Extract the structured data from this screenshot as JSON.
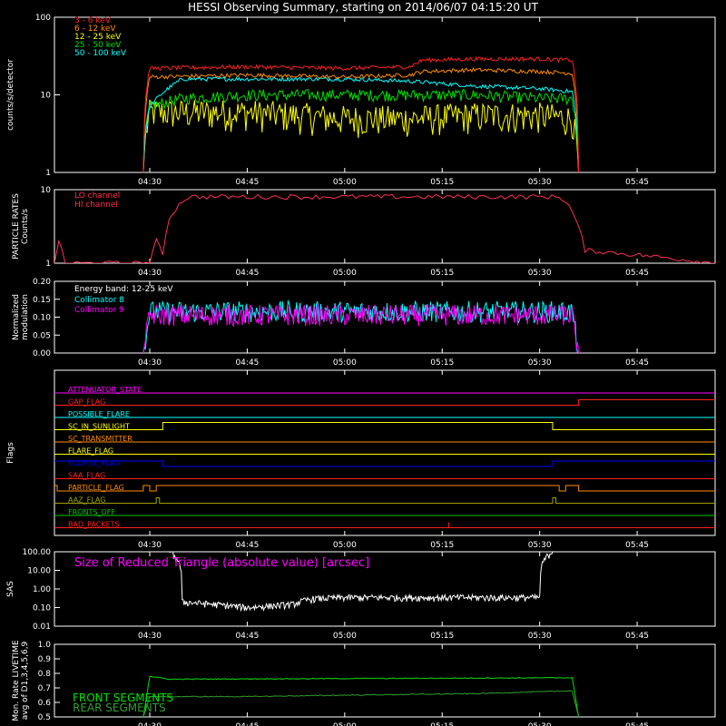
{
  "title": "HESSI Observing Summary, starting on 2014/06/07 04:15:20 UT",
  "time_ticks": [
    "04:30",
    "04:45",
    "05:00",
    "05:15",
    "05:30",
    "05:45"
  ],
  "colors": {
    "red": "#ff2020",
    "orange": "#ff8c00",
    "yellow": "#ffff00",
    "green": "#00e000",
    "cyan": "#00ffff",
    "magenta": "#ff00ff",
    "crimson": "#ff3050",
    "white": "#ffffff",
    "blue": "#0000ff",
    "olive": "#a0a000",
    "lime": "#00c800",
    "darkgreen": "#2f9f2f"
  },
  "chart_data": [
    {
      "type": "line",
      "id": "count-rates",
      "ylabel": "counts/s/detector",
      "y_scale": "log",
      "ylim": [
        1,
        100
      ],
      "y_ticks": [
        "1",
        "10",
        "100"
      ],
      "x_range": [
        "04:15:20",
        "05:57"
      ],
      "series": [
        {
          "name": "3 - 6 keV",
          "color": "red",
          "x": [
            "04:29",
            "04:30",
            "04:45",
            "05:00",
            "05:10",
            "05:12",
            "05:20",
            "05:30",
            "05:35",
            "05:36"
          ],
          "values": [
            1,
            22,
            23,
            22,
            23,
            28,
            29,
            29,
            28,
            1
          ]
        },
        {
          "name": "6 - 12 keV",
          "color": "orange",
          "x": [
            "04:29",
            "04:30",
            "04:45",
            "05:00",
            "05:10",
            "05:12",
            "05:20",
            "05:30",
            "05:35",
            "05:36"
          ],
          "values": [
            1,
            17,
            18,
            17,
            18,
            20,
            21,
            20,
            19,
            1
          ]
        },
        {
          "name": "12 - 25 keV",
          "color": "yellow",
          "x": [
            "04:29",
            "04:30",
            "04:45",
            "05:00",
            "05:10",
            "05:20",
            "05:30",
            "05:35",
            "05:36"
          ],
          "values": [
            1,
            6,
            6,
            5,
            5,
            5.5,
            5.5,
            5,
            1
          ]
        },
        {
          "name": "25 - 50 keV",
          "color": "green",
          "x": [
            "04:29",
            "04:30",
            "04:35",
            "04:45",
            "05:00",
            "05:10",
            "05:20",
            "05:30",
            "05:35",
            "05:36"
          ],
          "values": [
            1,
            7,
            9,
            10,
            10,
            10,
            10,
            9,
            9,
            1
          ]
        },
        {
          "name": "50 - 100 keV",
          "color": "cyan",
          "x": [
            "04:29",
            "04:30",
            "04:35",
            "04:45",
            "05:00",
            "05:10",
            "05:20",
            "05:30",
            "05:35",
            "05:36"
          ],
          "values": [
            1,
            7,
            16,
            16,
            16,
            15,
            13,
            12,
            11,
            1
          ]
        }
      ]
    },
    {
      "type": "line",
      "id": "particle-rates",
      "ylabel": "PARTICLE RATES",
      "ylabel2": "Counts/s",
      "y_scale": "log",
      "ylim": [
        1,
        10
      ],
      "y_ticks": [
        "1",
        "10"
      ],
      "series": [
        {
          "name": "LO channel",
          "color": "crimson",
          "x": [],
          "values": []
        },
        {
          "name": "HI channel",
          "color": "crimson",
          "x": [
            "04:15:20",
            "04:16",
            "04:17",
            "04:30",
            "04:31",
            "04:32",
            "04:33",
            "04:35",
            "04:36",
            "05:33",
            "05:34",
            "05:35",
            "05:36",
            "05:37",
            "05:57"
          ],
          "values": [
            1,
            2,
            1,
            1,
            2,
            1.3,
            4,
            7,
            8,
            8,
            7,
            5,
            3,
            1.5,
            1
          ]
        }
      ]
    },
    {
      "type": "line",
      "id": "modulation",
      "ylabel": "Normalized",
      "ylabel2": "modulation",
      "ylim": [
        0.0,
        0.2
      ],
      "y_ticks": [
        "0.00",
        "0.05",
        "0.10",
        "0.15",
        "0.20"
      ],
      "annotation": "Energy band: 12-25 keV",
      "series": [
        {
          "name": "Collimator 8",
          "color": "cyan",
          "x": [
            "04:29",
            "04:30",
            "05:35",
            "05:36"
          ],
          "values": [
            0.0,
            0.115,
            0.115,
            0.0
          ]
        },
        {
          "name": "Collimator 9",
          "color": "magenta",
          "x": [
            "04:29",
            "04:30",
            "05:35",
            "05:36"
          ],
          "values": [
            0.0,
            0.105,
            0.105,
            0.0
          ]
        }
      ]
    },
    {
      "type": "line",
      "id": "flags",
      "ylabel": "Flags",
      "flags": [
        {
          "name": "ATTENUATOR_STATE",
          "color": "magenta"
        },
        {
          "name": "GAP_FLAG",
          "color": "red"
        },
        {
          "name": "POSSIBLE_FLARE",
          "color": "cyan"
        },
        {
          "name": "SC_IN_SUNLIGHT",
          "color": "yellow"
        },
        {
          "name": "SC_TRANSMITTER",
          "color": "orange"
        },
        {
          "name": "FLARE_FLAG",
          "color": "yellow"
        },
        {
          "name": "ECLIPSE_FLAG",
          "color": "blue"
        },
        {
          "name": "SAA_FLAG",
          "color": "red"
        },
        {
          "name": "PARTICLE_FLAG",
          "color": "orange"
        },
        {
          "name": "AAZ_FLAG",
          "color": "olive"
        },
        {
          "name": "FRONTS_OFF",
          "color": "lime"
        },
        {
          "name": "BAD_PACKETS",
          "color": "red"
        }
      ]
    },
    {
      "type": "line",
      "id": "sas",
      "ylabel": "SAS",
      "y_scale": "log",
      "ylim": [
        0.01,
        100
      ],
      "y_ticks": [
        "0.01",
        "0.10",
        "1.00",
        "10.00",
        "100.00"
      ],
      "annotation": "Size of Reduced Triangle (absolute value) [arcsec]",
      "series": [
        {
          "name": "",
          "color": "white",
          "x": [
            "04:33",
            "04:35",
            "04:45",
            "04:52",
            "04:55",
            "05:00",
            "05:15",
            "05:30",
            "05:32"
          ],
          "values": [
            100,
            0.2,
            0.1,
            0.15,
            0.3,
            0.35,
            0.35,
            0.35,
            100
          ]
        }
      ]
    },
    {
      "type": "line",
      "id": "livetime",
      "ylabel": "Mon. Rate LIVETIME",
      "ylabel2": "avg of D1,3,4,5,6,9",
      "ylim": [
        0.5,
        1.0
      ],
      "y_ticks": [
        "0.5",
        "0.6",
        "0.7",
        "0.8",
        "0.9",
        "1.0"
      ],
      "series": [
        {
          "name": "FRONT SEGMENTS",
          "color": "green",
          "x": [
            "04:29",
            "04:30",
            "04:33",
            "05:35",
            "05:36"
          ],
          "values": [
            0.5,
            0.78,
            0.76,
            0.77,
            0.5
          ]
        },
        {
          "name": "REAR SEGMENTS",
          "color": "darkgreen",
          "x": [
            "04:29",
            "04:30",
            "04:45",
            "05:00",
            "05:20",
            "05:35",
            "05:36"
          ],
          "values": [
            0.5,
            0.64,
            0.64,
            0.65,
            0.66,
            0.68,
            0.5
          ]
        }
      ]
    }
  ]
}
